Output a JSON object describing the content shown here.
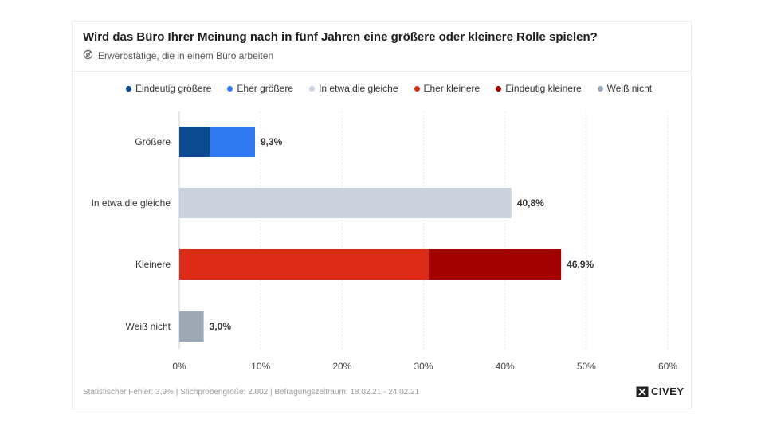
{
  "header": {
    "title": "Wird das Büro Ihrer Meinung nach in fünf Jahren eine größere oder kleinere Rolle spielen?",
    "subtitle": "Erwerbstätige, die in einem Büro arbeiten",
    "subtitle_icon": "audience-icon"
  },
  "footer": {
    "text": "Statistischer Fehler: 3,9% | Stichprobengröße: 2.002 | Befragungszeitraum: 18.02.21 - 24.02.21",
    "logo_text": "CIVEY"
  },
  "chart_data": {
    "type": "bar",
    "orientation": "horizontal",
    "stacked": true,
    "categories": [
      "Größere",
      "In etwa die gleiche",
      "Kleinere",
      "Weiß nicht"
    ],
    "series": [
      {
        "name": "Eindeutig größere",
        "color": "#0b4a8f",
        "values": [
          3.8,
          0,
          0,
          0
        ]
      },
      {
        "name": "Eher größere",
        "color": "#2f7af0",
        "values": [
          5.5,
          0,
          0,
          0
        ]
      },
      {
        "name": "In etwa die gleiche",
        "color": "#c8d3de",
        "values": [
          0,
          40.8,
          0,
          0
        ]
      },
      {
        "name": "Eher kleinere",
        "color": "#dc2b16",
        "values": [
          0,
          0,
          30.6,
          0
        ]
      },
      {
        "name": "Eindeutig kleinere",
        "color": "#a30000",
        "values": [
          0,
          0,
          16.3,
          0
        ]
      },
      {
        "name": "Weiß nicht",
        "color": "#9ba8b5",
        "values": [
          0,
          0,
          0,
          3.0
        ]
      }
    ],
    "totals_labels": [
      "9,3%",
      "40,8%",
      "46,9%",
      "3,0%"
    ],
    "totals": [
      9.3,
      40.8,
      46.9,
      3.0
    ],
    "xlim": [
      0,
      60
    ],
    "xticks": [
      0,
      10,
      20,
      30,
      40,
      50,
      60
    ],
    "xtick_labels": [
      "0%",
      "10%",
      "20%",
      "30%",
      "40%",
      "50%",
      "60%"
    ],
    "grid": true,
    "legend_position": "top"
  }
}
